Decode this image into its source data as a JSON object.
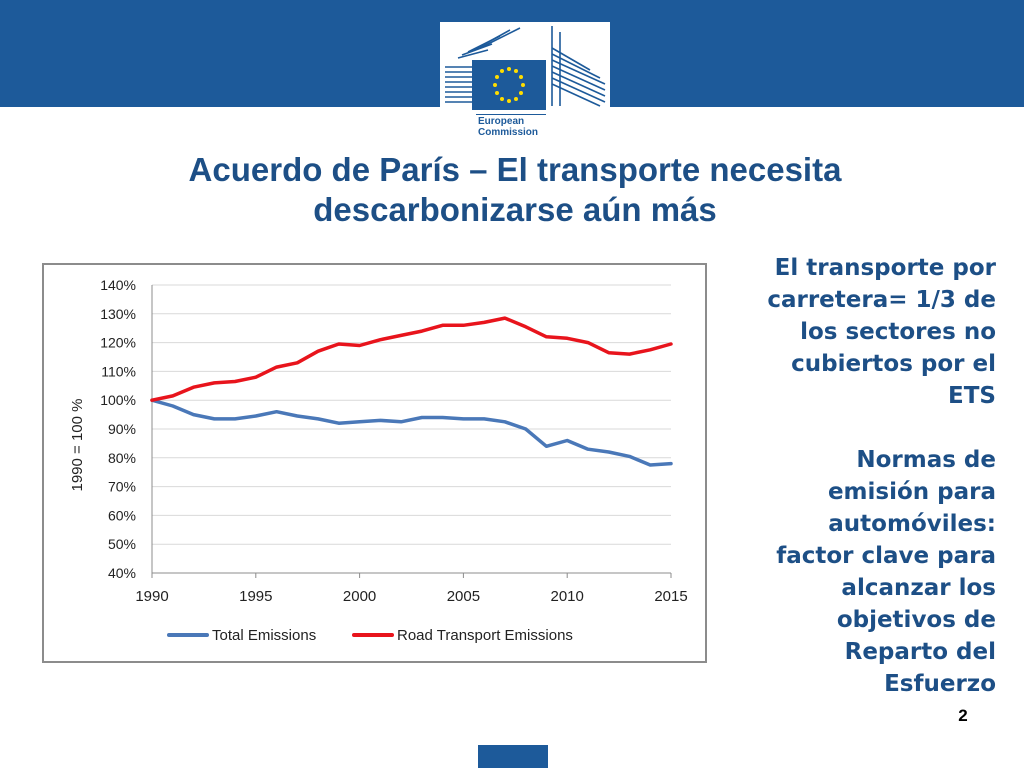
{
  "header": {
    "logo_line1": "European",
    "logo_line2": "Commission"
  },
  "slide": {
    "title_line1": "Acuerdo de París – El transporte necesita",
    "title_line2": "descarbonizarse aún más",
    "side_text_1": [
      "El transporte por",
      "carretera= 1/3 de",
      "los sectores no",
      "cubiertos por el",
      "ETS"
    ],
    "side_text_2": [
      "Normas de",
      "emisión para",
      "automóviles:",
      "factor clave para",
      "alcanzar los",
      "objetivos de",
      "Reparto del",
      "Esfuerzo"
    ],
    "page_number": "2"
  },
  "colors": {
    "brand_blue": "#1d5a9a",
    "title_blue": "#1d4f86",
    "total_series": "#4a78b8",
    "road_series": "#e8141c"
  },
  "chart_data": {
    "type": "line",
    "title": "",
    "xlabel": "",
    "ylabel": "1990 = 100 %",
    "x": [
      1990,
      1991,
      1992,
      1993,
      1994,
      1995,
      1996,
      1997,
      1998,
      1999,
      2000,
      2001,
      2002,
      2003,
      2004,
      2005,
      2006,
      2007,
      2008,
      2009,
      2010,
      2011,
      2012,
      2013,
      2014,
      2015
    ],
    "xticks": [
      1990,
      1995,
      2000,
      2005,
      2010,
      2015
    ],
    "xtick_labels": [
      "1990",
      "1995",
      "2000",
      "2005",
      "2010",
      "2015"
    ],
    "ylim": [
      40,
      140
    ],
    "yticks": [
      40,
      50,
      60,
      70,
      80,
      90,
      100,
      110,
      120,
      130,
      140
    ],
    "ytick_labels": [
      "40%",
      "50%",
      "60%",
      "70%",
      "80%",
      "90%",
      "100%",
      "110%",
      "120%",
      "130%",
      "140%"
    ],
    "grid": true,
    "legend": "bottom",
    "series": [
      {
        "name": "Total Emissions",
        "color": "#4a78b8",
        "values": [
          100,
          98,
          95,
          93.5,
          93.5,
          94.5,
          96,
          94.5,
          93.5,
          92,
          92.5,
          93,
          92.5,
          94,
          94,
          93.5,
          93.5,
          92.5,
          90,
          84,
          86,
          83,
          82,
          80.5,
          77.5,
          78
        ]
      },
      {
        "name": "Road Transport Emissions",
        "color": "#e8141c",
        "values": [
          100,
          101.5,
          104.5,
          106,
          106.5,
          108,
          111.5,
          113,
          117,
          119.5,
          119,
          121,
          122.5,
          124,
          126,
          126,
          127,
          128.5,
          125.5,
          122,
          121.5,
          120,
          116.5,
          116,
          117.5,
          119.5
        ]
      }
    ]
  }
}
